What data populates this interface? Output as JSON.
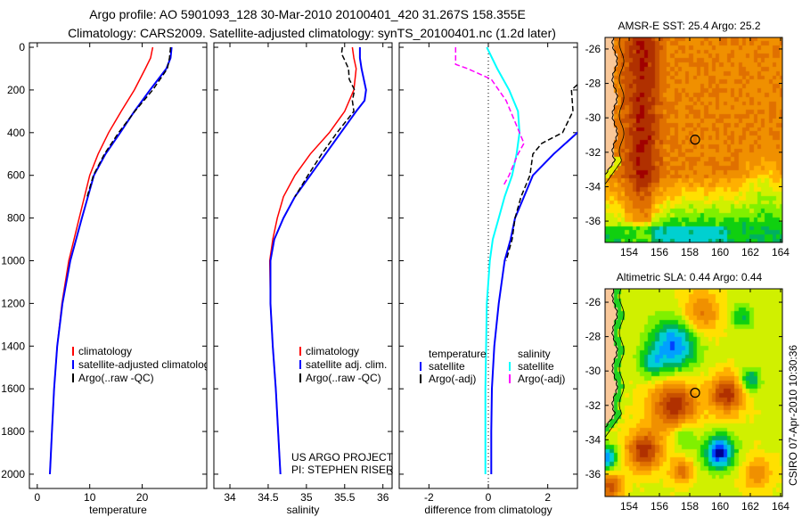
{
  "header": {
    "line1": "Argo profile: AO 5901093_128 30-Mar-2010 20100401_420 31.267S 158.355E",
    "line2": "Climatology: CARS2009. Satellite-adjusted climatology: synTS_20100401.nc (1.2d later)"
  },
  "footer": {
    "project": "US ARGO PROJECT",
    "pi": "PI: STEPHEN RISER",
    "stamp": "CSIRO 07-Apr-2010 10:30:36"
  },
  "colors": {
    "climatology": "#ff0000",
    "satellite": "#0000ff",
    "argo": "#000000",
    "sal_satellite": "#00ffff",
    "sal_argo": "#ff00ff"
  },
  "chart_data": [
    {
      "type": "line",
      "id": "temperature",
      "xlabel": "temperature",
      "ylabel": "",
      "xlim": [
        -1.5,
        32.3
      ],
      "ylim": [
        2067,
        -21
      ],
      "xticks": [
        0,
        10,
        20
      ],
      "yticks": [
        0,
        200,
        400,
        600,
        800,
        1000,
        1200,
        1400,
        1600,
        1800,
        2000
      ],
      "legend": {
        "placement": "bottom-right",
        "title": "",
        "entries": [
          "climatology",
          "satellite-adjusted climatology",
          "Argo(..raw -QC)"
        ]
      },
      "series": [
        {
          "name": "climatology",
          "color": "#ff0000",
          "style": "solid",
          "depth": [
            0,
            50,
            100,
            200,
            300,
            400,
            500,
            600,
            800,
            1000,
            1200,
            1400,
            1600,
            1800,
            2000
          ],
          "x": [
            22,
            21.6,
            20.6,
            18.5,
            16,
            13.6,
            11.6,
            10,
            8,
            6,
            4.7,
            3.8,
            3.2,
            2.8,
            2.4
          ]
        },
        {
          "name": "satellite-adjusted climatology",
          "color": "#0000ff",
          "style": "solid",
          "depth": [
            0,
            50,
            100,
            200,
            300,
            400,
            500,
            600,
            800,
            1000,
            1200,
            1400,
            1600,
            1800,
            2000
          ],
          "x": [
            25.6,
            25.4,
            24.6,
            21.5,
            18.5,
            15.8,
            13,
            10.8,
            8.5,
            6.3,
            4.8,
            3.8,
            3.2,
            2.8,
            2.4
          ]
        },
        {
          "name": "Argo(..raw -QC)",
          "color": "#000000",
          "style": "dashed",
          "depth": [
            0,
            50,
            100,
            200,
            300,
            400,
            500,
            600,
            700
          ],
          "x": [
            25.4,
            25.2,
            24.8,
            22,
            18.6,
            15.5,
            12.8,
            10.7,
            9.5
          ]
        }
      ]
    },
    {
      "type": "line",
      "id": "salinity",
      "xlabel": "salinity",
      "xlim": [
        33.79,
        36.12
      ],
      "ylim": [
        2067,
        -21
      ],
      "xticks": [
        34,
        34.5,
        35,
        35.5,
        36
      ],
      "legend": {
        "placement": "bottom-right",
        "title": "",
        "entries": [
          "climatology",
          "satellite adj. clim.",
          "Argo(..raw -QC)"
        ]
      },
      "series": [
        {
          "name": "climatology",
          "color": "#ff0000",
          "style": "solid",
          "depth": [
            0,
            50,
            100,
            200,
            300,
            400,
            500,
            600,
            700,
            800,
            900,
            1000,
            1200,
            1400,
            1600,
            1800,
            2000
          ],
          "x": [
            35.6,
            35.62,
            35.65,
            35.62,
            35.5,
            35.3,
            35.05,
            34.85,
            34.7,
            34.62,
            34.56,
            34.52,
            34.53,
            34.56,
            34.6,
            34.63,
            34.66
          ]
        },
        {
          "name": "satellite adj. clim.",
          "color": "#0000ff",
          "style": "solid",
          "depth": [
            0,
            50,
            100,
            200,
            250,
            300,
            400,
            500,
            600,
            700,
            800,
            900,
            1000,
            1200,
            1400,
            1600,
            1800,
            2000
          ],
          "x": [
            35.7,
            35.7,
            35.72,
            35.78,
            35.76,
            35.65,
            35.45,
            35.25,
            35.05,
            34.85,
            34.7,
            34.58,
            34.53,
            34.53,
            34.56,
            34.6,
            34.63,
            34.66
          ]
        },
        {
          "name": "Argo(..raw -QC)",
          "color": "#000000",
          "style": "dashed",
          "depth": [
            0,
            30,
            60,
            100,
            150,
            200,
            250,
            300,
            400,
            450,
            500,
            600,
            700
          ],
          "x": [
            35.47,
            35.46,
            35.5,
            35.55,
            35.56,
            35.63,
            35.6,
            35.62,
            35.4,
            35.3,
            35.2,
            35.02,
            34.85
          ]
        }
      ]
    },
    {
      "type": "line",
      "id": "difference",
      "xlabel": "difference from climatology",
      "xlim": [
        -3.0,
        3.0
      ],
      "ylim": [
        2067,
        -21
      ],
      "xticks": [
        -2,
        0,
        2
      ],
      "zero_line": true,
      "legend": {
        "placement": "bottom",
        "groups": [
          {
            "title": "temperature",
            "entries": [
              "satellite",
              "Argo(-adj)"
            ]
          },
          {
            "title": "salinity",
            "entries": [
              "satellite",
              "Argo(-adj)"
            ]
          }
        ]
      },
      "series": [
        {
          "name": "temperature satellite",
          "color": "#0000ff",
          "style": "solid",
          "depth": [
            300,
            400,
            500,
            600,
            700,
            800,
            900,
            1000,
            1200,
            1400,
            1600,
            1800,
            2000
          ],
          "x": [
            3.6,
            3.0,
            2.2,
            1.5,
            1.2,
            0.9,
            0.75,
            0.55,
            0.35,
            0.2,
            0.12,
            0.1,
            0.1
          ]
        },
        {
          "name": "temperature Argo(-adj)",
          "color": "#000000",
          "style": "dashed",
          "depth": [
            150,
            200,
            300,
            400,
            450,
            500,
            600,
            700,
            800,
            900,
            1000
          ],
          "x": [
            3.2,
            2.8,
            2.85,
            2.5,
            1.8,
            1.5,
            1.4,
            1.1,
            0.9,
            0.8,
            0.6
          ]
        },
        {
          "name": "salinity satellite",
          "color": "#00ffff",
          "style": "solid",
          "depth": [
            0,
            100,
            200,
            300,
            400,
            500,
            600,
            700,
            800,
            900,
            1000,
            1200,
            1600,
            2000
          ],
          "x": [
            -0.05,
            0.3,
            0.7,
            1.0,
            1.05,
            0.95,
            0.8,
            0.55,
            0.35,
            0.15,
            0.05,
            -0.05,
            -0.1,
            -0.1
          ]
        },
        {
          "name": "salinity Argo(-adj)",
          "color": "#ff00ff",
          "style": "dashed",
          "depth": [
            0,
            80,
            100,
            150,
            250,
            350,
            450,
            500,
            600,
            650
          ],
          "x": [
            -1.1,
            -1.1,
            -0.7,
            0.1,
            0.6,
            0.9,
            1.2,
            1.0,
            0.7,
            0.5
          ]
        }
      ]
    },
    {
      "type": "heatmap",
      "id": "sst_map",
      "title": "AMSR-E SST: 25.4 Argo: 25.2",
      "xlim": [
        152.41,
        164.12
      ],
      "ylim": [
        -37.24,
        -25.33
      ],
      "xticks": [
        154,
        156,
        158,
        160,
        162,
        164
      ],
      "yticks": [
        -26,
        -28,
        -30,
        -32,
        -34,
        -36
      ],
      "marker": {
        "lon": 158.355,
        "lat": -31.267
      }
    },
    {
      "type": "heatmap",
      "id": "sla_map",
      "title": "Altimetric SLA: 0.44 Argo: 0.44",
      "xlim": [
        152.41,
        164.12
      ],
      "ylim": [
        -37.3,
        -25.22
      ],
      "xticks": [
        154,
        156,
        158,
        160,
        162,
        164
      ],
      "yticks": [
        -26,
        -28,
        -30,
        -32,
        -34,
        -36
      ],
      "marker": {
        "lon": 158.355,
        "lat": -31.267
      }
    }
  ]
}
